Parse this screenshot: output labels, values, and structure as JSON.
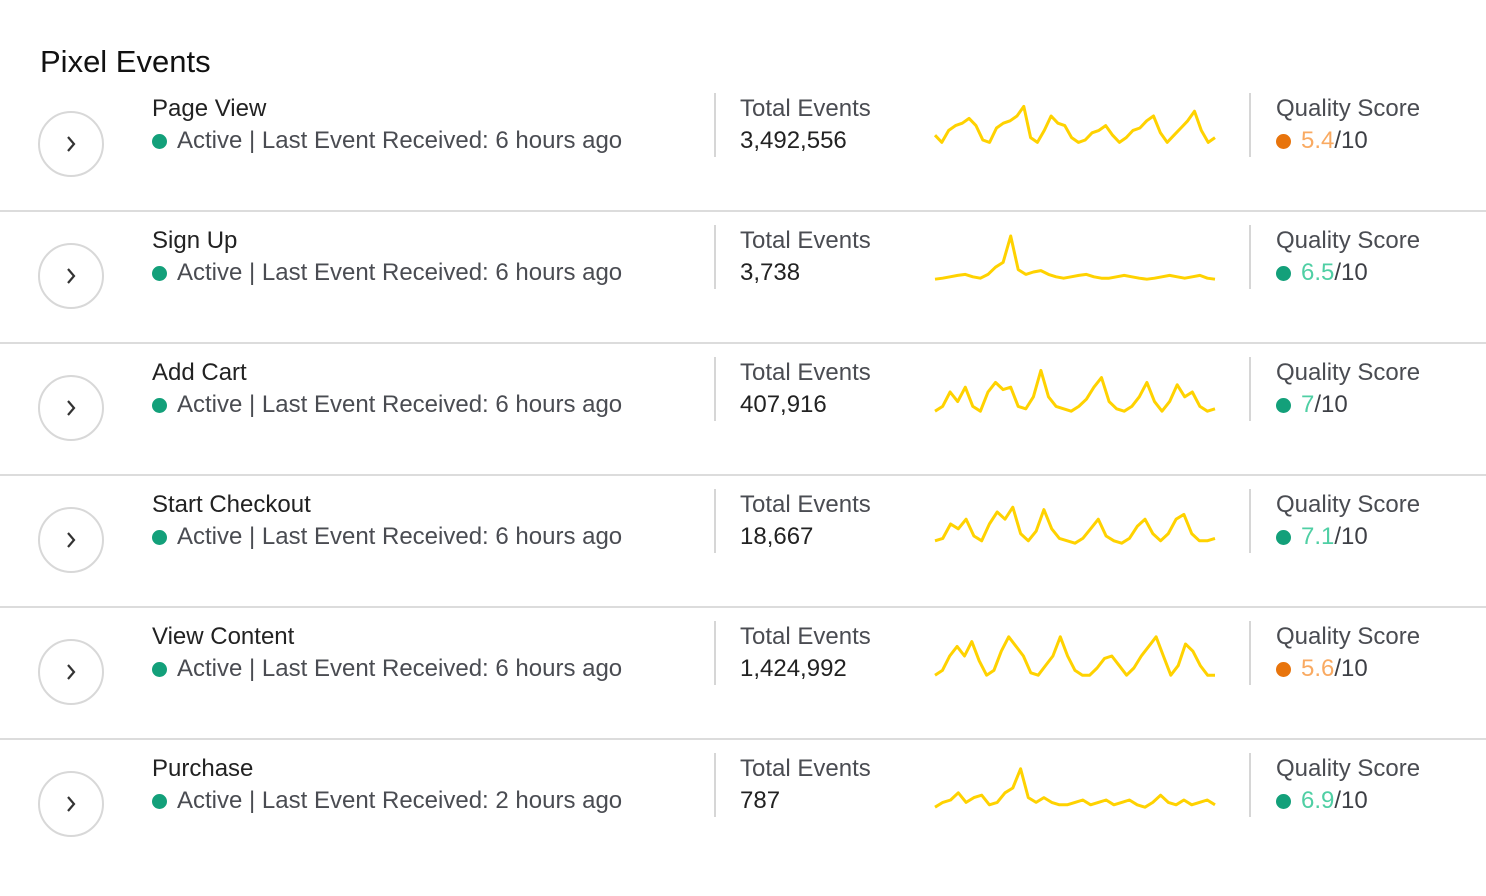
{
  "title": "Pixel Events",
  "labels": {
    "total_events": "Total Events",
    "quality_score": "Quality Score",
    "score_max": "/10"
  },
  "colors": {
    "active": "#13a07a",
    "sparkline": "#ffd200",
    "score_good": "#4fcfa4",
    "score_good_dot": "#13a07a",
    "score_warn": "#f9aa62",
    "score_warn_dot": "#e8740c"
  },
  "events": [
    {
      "name": "Page View",
      "status": "Active | Last Event Received: 6 hours ago",
      "total": "3,492,556",
      "score": "5.4",
      "level": "warn",
      "trend": [
        0.35,
        0.2,
        0.45,
        0.55,
        0.6,
        0.7,
        0.55,
        0.25,
        0.2,
        0.5,
        0.6,
        0.65,
        0.75,
        0.95,
        0.3,
        0.2,
        0.45,
        0.75,
        0.6,
        0.55,
        0.3,
        0.2,
        0.25,
        0.4,
        0.45,
        0.55,
        0.35,
        0.2,
        0.3,
        0.45,
        0.5,
        0.65,
        0.75,
        0.4,
        0.2,
        0.35,
        0.5,
        0.65,
        0.85,
        0.45,
        0.2,
        0.3
      ]
    },
    {
      "name": "Sign Up",
      "status": "Active | Last Event Received: 6 hours ago",
      "total": "3,738",
      "score": "6.5",
      "level": "good",
      "trend": [
        0.1,
        0.12,
        0.15,
        0.18,
        0.2,
        0.15,
        0.12,
        0.2,
        0.35,
        0.45,
        1.0,
        0.3,
        0.2,
        0.25,
        0.28,
        0.2,
        0.15,
        0.12,
        0.15,
        0.18,
        0.2,
        0.15,
        0.12,
        0.12,
        0.15,
        0.18,
        0.15,
        0.12,
        0.1,
        0.12,
        0.15,
        0.18,
        0.15,
        0.12,
        0.15,
        0.18,
        0.12,
        0.1
      ]
    },
    {
      "name": "Add Cart",
      "status": "Active | Last Event Received: 6 hours ago",
      "total": "407,916",
      "score": "7",
      "level": "good",
      "trend": [
        0.1,
        0.2,
        0.5,
        0.3,
        0.6,
        0.2,
        0.1,
        0.5,
        0.7,
        0.55,
        0.6,
        0.2,
        0.15,
        0.4,
        0.95,
        0.4,
        0.2,
        0.15,
        0.1,
        0.2,
        0.35,
        0.6,
        0.8,
        0.3,
        0.15,
        0.1,
        0.2,
        0.4,
        0.7,
        0.3,
        0.1,
        0.3,
        0.65,
        0.4,
        0.5,
        0.2,
        0.1,
        0.15
      ]
    },
    {
      "name": "Start Checkout",
      "status": "Active | Last Event Received: 6 hours ago",
      "total": "18,667",
      "score": "7.1",
      "level": "good",
      "trend": [
        0.15,
        0.2,
        0.5,
        0.4,
        0.6,
        0.25,
        0.15,
        0.5,
        0.75,
        0.6,
        0.85,
        0.3,
        0.15,
        0.35,
        0.8,
        0.4,
        0.2,
        0.15,
        0.1,
        0.2,
        0.4,
        0.6,
        0.25,
        0.15,
        0.1,
        0.2,
        0.45,
        0.6,
        0.3,
        0.15,
        0.3,
        0.6,
        0.7,
        0.3,
        0.15,
        0.15,
        0.2
      ]
    },
    {
      "name": "View Content",
      "status": "Active | Last Event Received: 6 hours ago",
      "total": "1,424,992",
      "score": "5.6",
      "level": "warn",
      "trend": [
        0.1,
        0.2,
        0.5,
        0.7,
        0.5,
        0.8,
        0.4,
        0.1,
        0.2,
        0.6,
        0.9,
        0.7,
        0.5,
        0.15,
        0.1,
        0.3,
        0.5,
        0.9,
        0.5,
        0.2,
        0.1,
        0.1,
        0.25,
        0.45,
        0.5,
        0.3,
        0.1,
        0.25,
        0.5,
        0.7,
        0.9,
        0.5,
        0.1,
        0.3,
        0.75,
        0.6,
        0.3,
        0.1,
        0.1
      ]
    },
    {
      "name": "Purchase",
      "status": "Active | Last Event Received: 2 hours ago",
      "total": "787",
      "score": "6.9",
      "level": "good",
      "trend": [
        0.1,
        0.2,
        0.25,
        0.4,
        0.2,
        0.3,
        0.35,
        0.15,
        0.2,
        0.4,
        0.5,
        0.9,
        0.3,
        0.2,
        0.3,
        0.2,
        0.15,
        0.15,
        0.2,
        0.25,
        0.15,
        0.2,
        0.25,
        0.15,
        0.2,
        0.25,
        0.15,
        0.1,
        0.2,
        0.35,
        0.2,
        0.15,
        0.25,
        0.15,
        0.2,
        0.25,
        0.15
      ]
    }
  ]
}
